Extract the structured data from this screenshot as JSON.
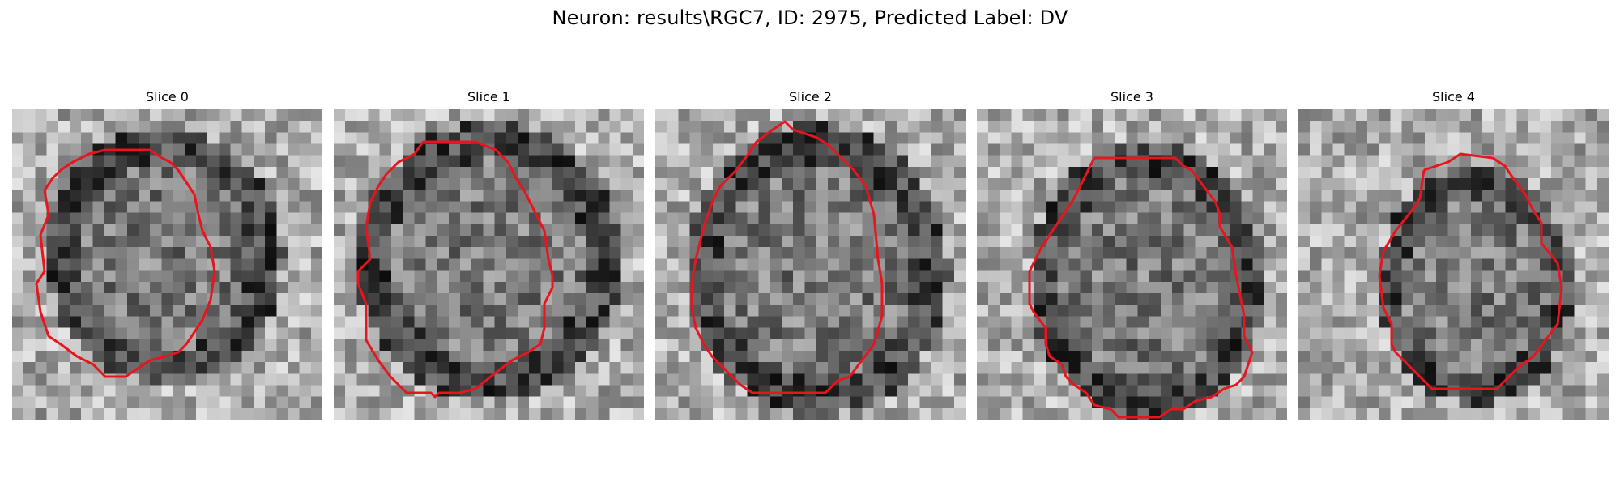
{
  "figure": {
    "title": "Neuron: results\\RGC7, ID: 2975, Predicted Label: DV"
  },
  "slices": [
    {
      "label": "Slice 0"
    },
    {
      "label": "Slice 1"
    },
    {
      "label": "Slice 2"
    },
    {
      "label": "Slice 3"
    },
    {
      "label": "Slice 4"
    }
  ],
  "colors": {
    "contour": "#e8141e",
    "background": "#ffffff"
  }
}
